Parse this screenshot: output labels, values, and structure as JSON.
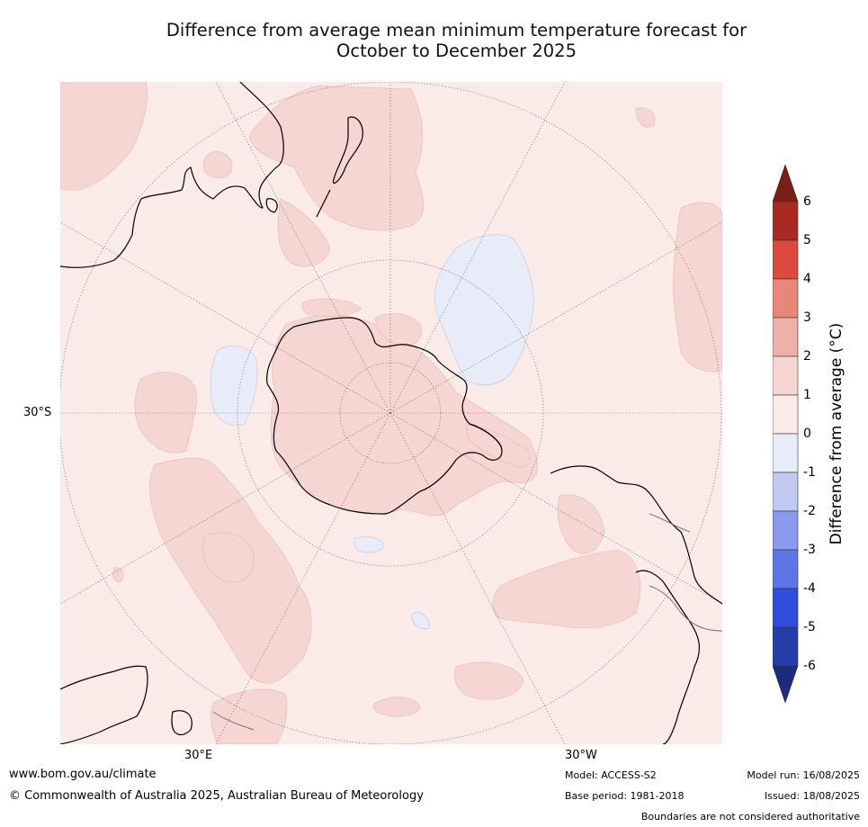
{
  "title": {
    "line1": "Difference from average mean minimum temperature forecast for",
    "line2": "October to December 2025"
  },
  "map": {
    "projection": "south-polar-stereographic",
    "lat_label": "30°S",
    "lon_labels": [
      "30°E",
      "30°W"
    ],
    "colors": {
      "ocean_land_0_1": "#fbebe8",
      "anomaly_1_2": "#f5d6d3",
      "anomaly_0_minus1": "#e8ecf9",
      "coastline": "#000000",
      "boundary": "#777777",
      "graticule": "#555555"
    }
  },
  "colorbar": {
    "label": "Difference from average (°C)",
    "ticks": [
      "6",
      "5",
      "4",
      "3",
      "2",
      "1",
      "0",
      "-1",
      "-2",
      "-3",
      "-4",
      "-5",
      "-6"
    ],
    "bins": [
      {
        "range": "above 6",
        "color": "#7b1e17"
      },
      {
        "range": "5 to 6",
        "color": "#a92a23"
      },
      {
        "range": "4 to 5",
        "color": "#da4a3e"
      },
      {
        "range": "3 to 4",
        "color": "#e8867c"
      },
      {
        "range": "2 to 3",
        "color": "#efb0a8"
      },
      {
        "range": "1 to 2",
        "color": "#f5d6d3"
      },
      {
        "range": "0 to 1",
        "color": "#fbebe8"
      },
      {
        "range": "-1 to 0",
        "color": "#e8ecf9"
      },
      {
        "range": "-2 to -1",
        "color": "#c1c9f1"
      },
      {
        "range": "-3 to -2",
        "color": "#8a9aee"
      },
      {
        "range": "-4 to -3",
        "color": "#5f75e6"
      },
      {
        "range": "-5 to -4",
        "color": "#2f4ddf"
      },
      {
        "range": "-6 to -5",
        "color": "#263da8"
      },
      {
        "range": "below -6",
        "color": "#1e2a7d"
      }
    ]
  },
  "footer": {
    "url": "www.bom.gov.au/climate",
    "copyright": "© Commonwealth of Australia 2025, Australian Bureau of Meteorology",
    "model": "Model: ACCESS-S2",
    "base_period": "Base period: 1981-2018",
    "model_run": "Model run: 16/08/2025",
    "issued": "Issued: 18/08/2025",
    "disclaimer": "Boundaries are not considered authoritative"
  }
}
